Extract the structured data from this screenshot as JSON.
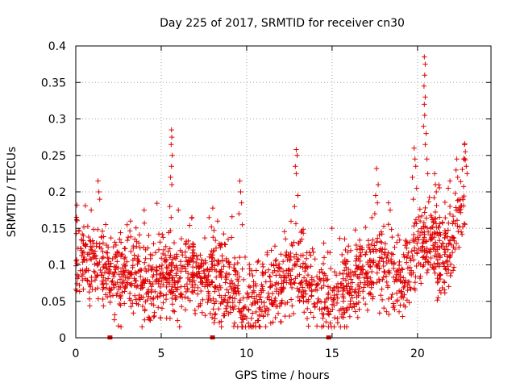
{
  "chart_data": {
    "type": "scatter",
    "title": "Day 225 of 2017, SRMTID for receiver cn30",
    "xlabel": "GPS time / hours",
    "ylabel": "SRMTID / TECUs",
    "xlim": [
      0,
      24.3
    ],
    "ylim": [
      0,
      0.4
    ],
    "x_ticks": [
      0,
      5,
      10,
      15,
      20
    ],
    "x_tick_labels": [
      "0",
      "5",
      "10",
      "15",
      "20"
    ],
    "y_ticks": [
      0,
      0.05,
      0.1,
      0.15,
      0.2,
      0.25,
      0.3,
      0.35,
      0.4
    ],
    "y_tick_labels": [
      "0",
      "0.05",
      "0.1",
      "0.15",
      "0.2",
      "0.25",
      "0.3",
      "0.35",
      "0.4"
    ],
    "grid": true,
    "marker": "+",
    "color": "#e00000",
    "baseline_gaps": [
      2.0,
      8.0,
      14.8
    ],
    "trend": [
      [
        0.0,
        0.11
      ],
      [
        0.5,
        0.115
      ],
      [
        1.0,
        0.1
      ],
      [
        1.5,
        0.105
      ],
      [
        2.0,
        0.085
      ],
      [
        2.5,
        0.09
      ],
      [
        3.0,
        0.09
      ],
      [
        3.5,
        0.085
      ],
      [
        4.0,
        0.075
      ],
      [
        4.5,
        0.08
      ],
      [
        5.0,
        0.085
      ],
      [
        5.5,
        0.09
      ],
      [
        6.0,
        0.085
      ],
      [
        6.5,
        0.09
      ],
      [
        7.0,
        0.085
      ],
      [
        7.5,
        0.085
      ],
      [
        8.0,
        0.075
      ],
      [
        8.5,
        0.08
      ],
      [
        9.0,
        0.075
      ],
      [
        9.5,
        0.06
      ],
      [
        10.0,
        0.045
      ],
      [
        10.5,
        0.05
      ],
      [
        11.0,
        0.055
      ],
      [
        11.5,
        0.06
      ],
      [
        12.0,
        0.075
      ],
      [
        12.5,
        0.095
      ],
      [
        13.0,
        0.095
      ],
      [
        13.5,
        0.075
      ],
      [
        14.0,
        0.06
      ],
      [
        14.5,
        0.06
      ],
      [
        15.0,
        0.06
      ],
      [
        15.5,
        0.065
      ],
      [
        16.0,
        0.075
      ],
      [
        16.5,
        0.08
      ],
      [
        17.0,
        0.09
      ],
      [
        17.5,
        0.1
      ],
      [
        18.0,
        0.1
      ],
      [
        18.5,
        0.095
      ],
      [
        19.0,
        0.08
      ],
      [
        19.5,
        0.1
      ],
      [
        20.0,
        0.12
      ],
      [
        20.5,
        0.135
      ],
      [
        21.0,
        0.13
      ],
      [
        21.5,
        0.12
      ],
      [
        22.0,
        0.13
      ],
      [
        22.5,
        0.18
      ],
      [
        22.8,
        0.2
      ]
    ],
    "spread": 0.028,
    "spikes": [
      {
        "x": 1.3,
        "y": 0.215
      },
      {
        "x": 1.35,
        "y": 0.2
      },
      {
        "x": 1.4,
        "y": 0.19
      },
      {
        "x": 5.6,
        "y": 0.285
      },
      {
        "x": 5.62,
        "y": 0.275
      },
      {
        "x": 5.58,
        "y": 0.265
      },
      {
        "x": 5.65,
        "y": 0.25
      },
      {
        "x": 5.6,
        "y": 0.235
      },
      {
        "x": 5.55,
        "y": 0.22
      },
      {
        "x": 5.62,
        "y": 0.21
      },
      {
        "x": 5.5,
        "y": 0.18
      },
      {
        "x": 5.58,
        "y": 0.165
      },
      {
        "x": 9.6,
        "y": 0.215
      },
      {
        "x": 9.65,
        "y": 0.2
      },
      {
        "x": 9.7,
        "y": 0.185
      },
      {
        "x": 9.55,
        "y": 0.17
      },
      {
        "x": 9.75,
        "y": 0.155
      },
      {
        "x": 12.9,
        "y": 0.258
      },
      {
        "x": 12.95,
        "y": 0.25
      },
      {
        "x": 12.85,
        "y": 0.235
      },
      {
        "x": 12.9,
        "y": 0.225
      },
      {
        "x": 13.0,
        "y": 0.195
      },
      {
        "x": 12.8,
        "y": 0.18
      },
      {
        "x": 17.6,
        "y": 0.232
      },
      {
        "x": 17.7,
        "y": 0.21
      },
      {
        "x": 17.55,
        "y": 0.195
      },
      {
        "x": 17.65,
        "y": 0.185
      },
      {
        "x": 17.5,
        "y": 0.17
      },
      {
        "x": 19.8,
        "y": 0.26
      },
      {
        "x": 19.85,
        "y": 0.245
      },
      {
        "x": 19.9,
        "y": 0.235
      },
      {
        "x": 19.7,
        "y": 0.22
      },
      {
        "x": 19.95,
        "y": 0.205
      },
      {
        "x": 19.75,
        "y": 0.19
      },
      {
        "x": 20.4,
        "y": 0.385
      },
      {
        "x": 20.45,
        "y": 0.375
      },
      {
        "x": 20.42,
        "y": 0.36
      },
      {
        "x": 20.38,
        "y": 0.345
      },
      {
        "x": 20.45,
        "y": 0.33
      },
      {
        "x": 20.4,
        "y": 0.32
      },
      {
        "x": 20.42,
        "y": 0.305
      },
      {
        "x": 20.35,
        "y": 0.29
      },
      {
        "x": 20.5,
        "y": 0.28
      },
      {
        "x": 20.45,
        "y": 0.265
      },
      {
        "x": 20.55,
        "y": 0.245
      },
      {
        "x": 20.6,
        "y": 0.225
      },
      {
        "x": 21.0,
        "y": 0.225
      },
      {
        "x": 21.05,
        "y": 0.21
      },
      {
        "x": 21.1,
        "y": 0.2
      },
      {
        "x": 22.3,
        "y": 0.245
      },
      {
        "x": 22.25,
        "y": 0.23
      },
      {
        "x": 22.35,
        "y": 0.22
      },
      {
        "x": 22.75,
        "y": 0.265
      },
      {
        "x": 22.8,
        "y": 0.255
      },
      {
        "x": 22.7,
        "y": 0.245
      },
      {
        "x": 22.85,
        "y": 0.235
      },
      {
        "x": 22.9,
        "y": 0.225
      },
      {
        "x": 0.9,
        "y": 0.175
      },
      {
        "x": 3.2,
        "y": 0.16
      },
      {
        "x": 3.0,
        "y": 0.155
      },
      {
        "x": 4.0,
        "y": 0.175
      },
      {
        "x": 6.0,
        "y": 0.175
      },
      {
        "x": 6.8,
        "y": 0.165
      },
      {
        "x": 7.8,
        "y": 0.165
      },
      {
        "x": 8.3,
        "y": 0.16
      },
      {
        "x": 18.3,
        "y": 0.185
      },
      {
        "x": 18.4,
        "y": 0.175
      },
      {
        "x": 21.9,
        "y": 0.215
      },
      {
        "x": 21.8,
        "y": 0.205
      },
      {
        "x": 21.2,
        "y": 0.055
      },
      {
        "x": 21.3,
        "y": 0.065
      },
      {
        "x": 19.2,
        "y": 0.045
      },
      {
        "x": 18.8,
        "y": 0.05
      },
      {
        "x": 10.1,
        "y": 0.02
      },
      {
        "x": 9.8,
        "y": 0.025
      },
      {
        "x": 4.3,
        "y": 0.025
      },
      {
        "x": 4.6,
        "y": 0.03
      }
    ],
    "n_points": 1800,
    "seed": 22517
  }
}
